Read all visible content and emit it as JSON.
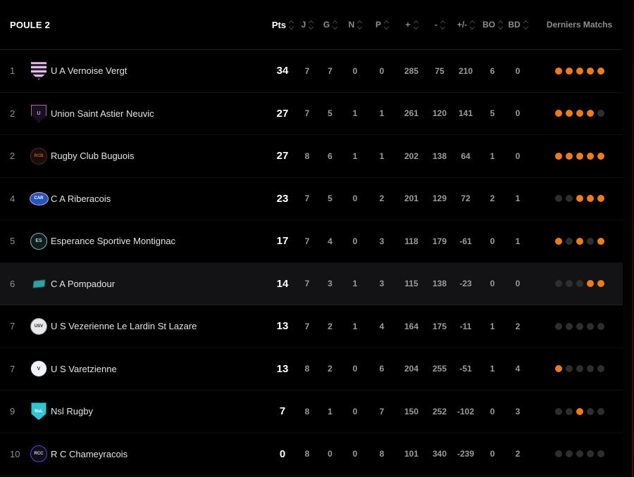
{
  "header": {
    "title": "POULE 2",
    "columns": [
      {
        "key": "pts",
        "label": "Pts",
        "sortable": true,
        "bright": true
      },
      {
        "key": "j",
        "label": "J",
        "sortable": true,
        "bright": false
      },
      {
        "key": "g",
        "label": "G",
        "sortable": true,
        "bright": false
      },
      {
        "key": "n",
        "label": "N",
        "sortable": true,
        "bright": false
      },
      {
        "key": "p",
        "label": "P",
        "sortable": true,
        "bright": false
      },
      {
        "key": "plus",
        "label": "+",
        "sortable": true,
        "bright": false
      },
      {
        "key": "minus",
        "label": "-",
        "sortable": true,
        "bright": false
      },
      {
        "key": "diff",
        "label": "+/-",
        "sortable": true,
        "bright": false
      },
      {
        "key": "bo",
        "label": "BO",
        "sortable": true,
        "bright": false
      },
      {
        "key": "bd",
        "label": "BD",
        "sortable": true,
        "bright": false
      },
      {
        "key": "derniers",
        "label": "Derniers Matchs",
        "sortable": false,
        "bright": false
      }
    ]
  },
  "colors": {
    "accent": "#ee7c1b",
    "dot_inactive": "#2e2e2e",
    "row_highlight": "#131316"
  },
  "teams": [
    {
      "rank": "1",
      "name": "U A Vernoise Vergt",
      "pts": "34",
      "j": "7",
      "g": "7",
      "n": "0",
      "p": "0",
      "plus": "285",
      "minus": "75",
      "diff": "210",
      "bo": "6",
      "bd": "0",
      "last5": [
        1,
        1,
        1,
        1,
        1
      ],
      "highlight": false,
      "crest": {
        "shape": "shield",
        "bg": "#e9bade",
        "stripe": "#232339",
        "text": "",
        "text_color": "#232339",
        "border": ""
      }
    },
    {
      "rank": "2",
      "name": "Union Saint Astier Neuvic",
      "pts": "27",
      "j": "7",
      "g": "5",
      "n": "1",
      "p": "1",
      "plus": "261",
      "minus": "120",
      "diff": "141",
      "bo": "5",
      "bd": "0",
      "last5": [
        1,
        1,
        1,
        1,
        0
      ],
      "highlight": false,
      "crest": {
        "shape": "shield",
        "bg": "#161020",
        "stripe": "",
        "text": "U",
        "text_color": "#ef86d5",
        "border": "#b465a0"
      }
    },
    {
      "rank": "2",
      "name": "Rugby Club Buguois",
      "pts": "27",
      "j": "8",
      "g": "6",
      "n": "1",
      "p": "1",
      "plus": "202",
      "minus": "138",
      "diff": "64",
      "bo": "1",
      "bd": "0",
      "last5": [
        1,
        1,
        1,
        1,
        1
      ],
      "highlight": false,
      "crest": {
        "shape": "circle",
        "bg": "#190e09",
        "stripe": "",
        "text": "RCB",
        "text_color": "#c8512b",
        "border": "#54291a"
      }
    },
    {
      "rank": "4",
      "name": "C A Riberacois",
      "pts": "23",
      "j": "7",
      "g": "5",
      "n": "0",
      "p": "2",
      "plus": "201",
      "minus": "129",
      "diff": "72",
      "bo": "2",
      "bd": "1",
      "last5": [
        0,
        0,
        1,
        1,
        1
      ],
      "highlight": false,
      "crest": {
        "shape": "ellipse",
        "bg": "#2356c0",
        "stripe": "",
        "text": "CAR",
        "text_color": "#ffffff",
        "border": "#e39bd0"
      }
    },
    {
      "rank": "5",
      "name": "Esperance Sportive Montignac",
      "pts": "17",
      "j": "7",
      "g": "4",
      "n": "0",
      "p": "3",
      "plus": "118",
      "minus": "179",
      "diff": "-61",
      "bo": "0",
      "bd": "1",
      "last5": [
        1,
        0,
        1,
        0,
        1
      ],
      "highlight": false,
      "crest": {
        "shape": "circle",
        "bg": "#101b1d",
        "stripe": "",
        "text": "ES",
        "text_color": "#9fd8d8",
        "border": "#7bb7bb"
      }
    },
    {
      "rank": "6",
      "name": "C A Pompadour",
      "pts": "14",
      "j": "7",
      "g": "3",
      "n": "1",
      "p": "3",
      "plus": "115",
      "minus": "138",
      "diff": "-23",
      "bo": "0",
      "bd": "0",
      "last5": [
        0,
        0,
        0,
        1,
        1
      ],
      "highlight": true,
      "crest": {
        "shape": "flag",
        "bg": "#2fa2a0",
        "stripe": "",
        "text": "",
        "text_color": "",
        "border": "#1b5a62"
      }
    },
    {
      "rank": "7",
      "name": "U S Vezerienne Le Lardin St Lazare",
      "pts": "13",
      "j": "7",
      "g": "2",
      "n": "1",
      "p": "4",
      "plus": "164",
      "minus": "175",
      "diff": "-11",
      "bo": "1",
      "bd": "2",
      "last5": [
        0,
        0,
        0,
        0,
        0
      ],
      "highlight": false,
      "crest": {
        "shape": "circle",
        "bg": "#e8e8e8",
        "stripe": "",
        "text": "USV",
        "text_color": "#23262d",
        "border": "#8a8a8a"
      }
    },
    {
      "rank": "7",
      "name": "U S Varetzienne",
      "pts": "13",
      "j": "8",
      "g": "2",
      "n": "0",
      "p": "6",
      "plus": "204",
      "minus": "255",
      "diff": "-51",
      "bo": "1",
      "bd": "4",
      "last5": [
        1,
        0,
        0,
        0,
        0
      ],
      "highlight": false,
      "crest": {
        "shape": "circle",
        "bg": "#f2f2f2",
        "stripe": "",
        "text": "V",
        "text_color": "#1d2f52",
        "border": "#10203f"
      }
    },
    {
      "rank": "9",
      "name": "Nsl Rugby",
      "pts": "7",
      "j": "8",
      "g": "1",
      "n": "0",
      "p": "7",
      "plus": "150",
      "minus": "252",
      "diff": "-102",
      "bo": "0",
      "bd": "3",
      "last5": [
        0,
        0,
        1,
        0,
        0
      ],
      "highlight": false,
      "crest": {
        "shape": "shield",
        "bg": "#35c4d4",
        "stripe": "",
        "text": "NsL",
        "text_color": "#ffffff",
        "border": "#0d6b78"
      }
    },
    {
      "rank": "10",
      "name": "R C Chameyracois",
      "pts": "0",
      "j": "8",
      "g": "0",
      "n": "0",
      "p": "8",
      "plus": "101",
      "minus": "340",
      "diff": "-239",
      "bo": "0",
      "bd": "2",
      "last5": [
        0,
        0,
        0,
        0,
        0
      ],
      "highlight": false,
      "crest": {
        "shape": "circle",
        "bg": "#0e0e14",
        "stripe": "",
        "text": "RCC",
        "text_color": "#cdd4f2",
        "border": "#5b3fd6"
      }
    }
  ]
}
